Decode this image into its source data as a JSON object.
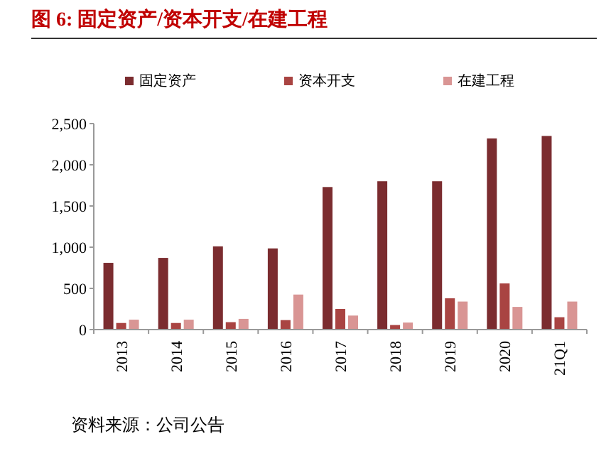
{
  "chart_data": {
    "type": "bar",
    "title": "图 6:  固定资产/资本开支/在建工程",
    "categories": [
      "2013",
      "2014",
      "2015",
      "2016",
      "2017",
      "2018",
      "2019",
      "2020",
      "21Q1"
    ],
    "series": [
      {
        "name": "固定资产",
        "color": "#7b2c2f",
        "values": [
          810,
          870,
          1010,
          985,
          1730,
          1800,
          1800,
          2320,
          2350
        ]
      },
      {
        "name": "资本开支",
        "color": "#a94442",
        "values": [
          80,
          80,
          90,
          115,
          250,
          55,
          380,
          560,
          150
        ]
      },
      {
        "name": "在建工程",
        "color": "#d99594",
        "values": [
          120,
          120,
          130,
          425,
          170,
          85,
          340,
          275,
          340
        ]
      }
    ],
    "ylim": [
      0,
      2500
    ],
    "yticks": [
      {
        "value": 0,
        "label": "0"
      },
      {
        "value": 500,
        "label": "500"
      },
      {
        "value": 1000,
        "label": "1,000"
      },
      {
        "value": 1500,
        "label": "1,500"
      },
      {
        "value": 2000,
        "label": "2,000"
      },
      {
        "value": 2500,
        "label": "2,500"
      }
    ],
    "legend": "top",
    "grid": false,
    "annotations": [
      "资料来源：公司公告"
    ]
  }
}
